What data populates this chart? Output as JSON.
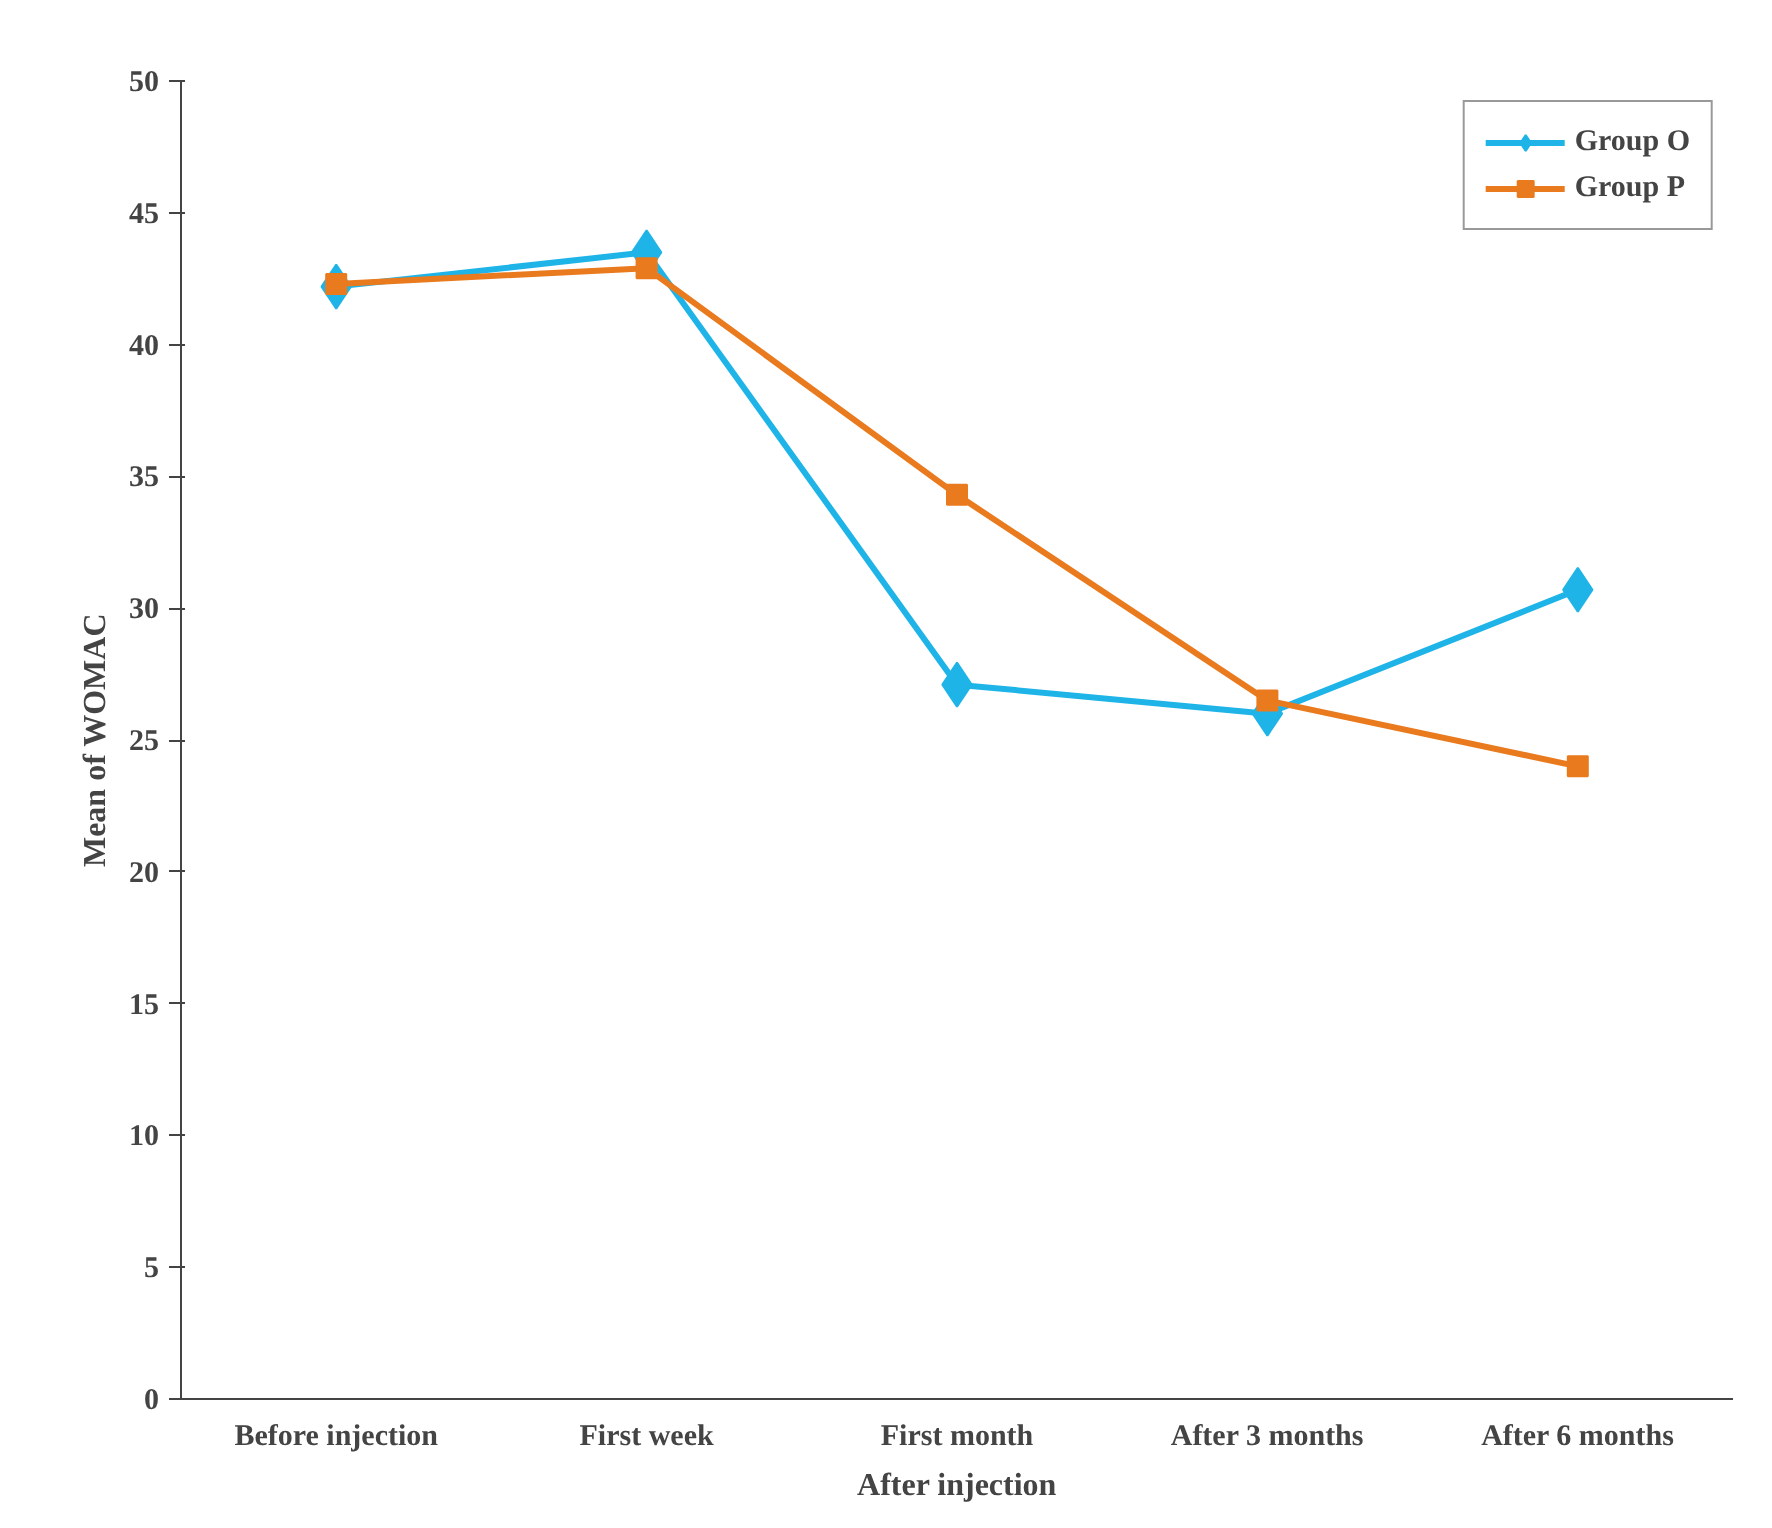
{
  "chart_data": {
    "type": "line",
    "ylabel": "Mean of WOMAC",
    "xlabel": "After injection",
    "categories": [
      "Before injection",
      "First week",
      "First month",
      "After 3 months",
      "After 6 months"
    ],
    "series": [
      {
        "name": "Group O",
        "color": "#1fb4e8",
        "marker": "diamond",
        "values": [
          42.2,
          43.5,
          27.1,
          26.0,
          30.7
        ]
      },
      {
        "name": "Group P",
        "color": "#e97a1e",
        "marker": "square",
        "values": [
          42.3,
          42.9,
          34.3,
          26.5,
          24.0
        ]
      }
    ],
    "ylim": [
      0,
      50
    ],
    "yticks": [
      0,
      5,
      10,
      15,
      20,
      25,
      30,
      35,
      40,
      45,
      50
    ],
    "grid": false,
    "legend": "top right",
    "line_style": "solid"
  }
}
